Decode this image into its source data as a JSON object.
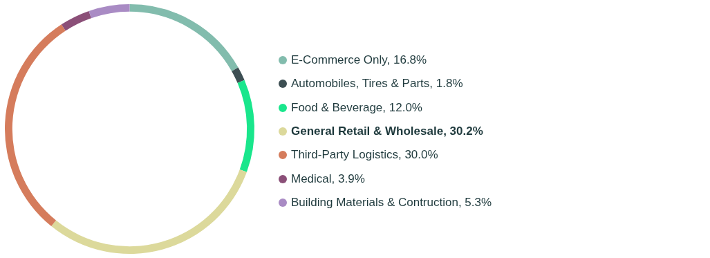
{
  "chart_data": {
    "type": "donut",
    "categories": [
      "E-Commerce Only, 16.8%",
      "Automobiles, Tires & Parts, 1.8%",
      "Food & Beverage, 12.0%",
      "General Retail & Wholesale, 30.2%",
      "Third-Party Logistics, 30.0%",
      "Medical, 3.9%",
      "Building Materials & Contruction, 5.3%"
    ],
    "values": [
      16.8,
      1.8,
      12.0,
      30.2,
      30.0,
      3.9,
      5.3
    ],
    "colors": [
      "#82bcad",
      "#3d4f53",
      "#19e68c",
      "#dcd99b",
      "#d57c5c",
      "#8b4f78",
      "#a98bc4"
    ],
    "legend": "right"
  }
}
